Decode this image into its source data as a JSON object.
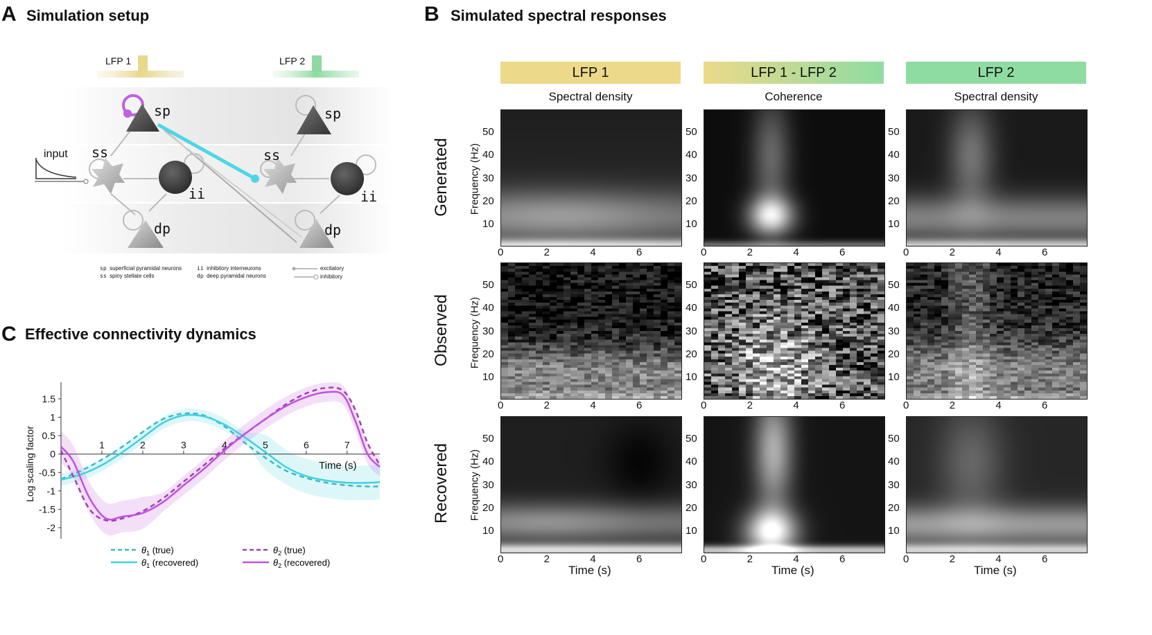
{
  "panels": {
    "a": {
      "letter": "A",
      "title": "Simulation setup"
    },
    "b": {
      "letter": "B",
      "title": "Simulated spectral responses"
    },
    "c": {
      "letter": "C",
      "title": "Effective connectivity dynamics"
    }
  },
  "setup": {
    "lfp1": "LFP 1",
    "lfp2": "LFP 2",
    "input_label": "input",
    "node_labels": {
      "sp": "sp",
      "ss": "ss",
      "ii": "ii",
      "dp": "dp"
    },
    "legend": [
      {
        "abbr": "sp",
        "text": "superficial pyramidal neurons"
      },
      {
        "abbr": "ss",
        "text": "spiny stellate cells"
      },
      {
        "abbr": "ii",
        "text": "inhibitory interneurons"
      },
      {
        "abbr": "dp",
        "text": "deep pyramidal neurons"
      }
    ],
    "connection_legend": {
      "excitatory": "excitatory",
      "inhibitory": "inhibitory"
    },
    "colors": {
      "lfp1": "#e8d88a",
      "lfp2": "#8ed9a0",
      "forward": "#4dd6e6",
      "self": "#c060e0"
    }
  },
  "spectral": {
    "columns": [
      {
        "header": "LFP 1",
        "sub": "Spectral density",
        "color": "#ecd98a"
      },
      {
        "header": "LFP 1 - LFP 2",
        "sub": "Coherence",
        "color": "gradient"
      },
      {
        "header": "LFP 2",
        "sub": "Spectral density",
        "color": "#8fdca2"
      }
    ],
    "rows": [
      "Generated",
      "Observed",
      "Recovered"
    ],
    "ylabel": "Frequency (Hz)",
    "xlabel": "Time (s)",
    "xticks": [
      "0",
      "2",
      "4",
      "6"
    ],
    "yticks": [
      "50",
      "40",
      "30",
      "20",
      "10"
    ],
    "colors": {
      "lfp1": "#ecd98a",
      "lfp2": "#8fdca2"
    }
  },
  "chart_data": {
    "type": "line",
    "xlabel": "Time (s)",
    "ylabel": "Log scaling factor",
    "xlim": [
      0,
      7.8
    ],
    "ylim": [
      -2.3,
      1.95
    ],
    "xticks": [
      1,
      2,
      3,
      4,
      5,
      6,
      7
    ],
    "yticks": [
      1.5,
      1,
      0.5,
      0,
      -0.5,
      -1,
      -1.5,
      -2
    ],
    "ytick_labels": [
      "1.5",
      "1",
      "0.5",
      "0",
      "-0.5",
      "-1",
      "-1.5",
      "-2"
    ],
    "series": [
      {
        "name": "θ1 (true)",
        "color": "#3bb8c4",
        "style": "dashed",
        "x": [
          0,
          0.5,
          1,
          1.5,
          2,
          2.5,
          3,
          3.5,
          4,
          4.5,
          5,
          5.5,
          6,
          6.5,
          7,
          7.5,
          7.8
        ],
        "y": [
          -0.68,
          -0.45,
          -0.15,
          0.2,
          0.6,
          0.95,
          1.1,
          1.05,
          0.75,
          0.3,
          -0.1,
          -0.45,
          -0.65,
          -0.78,
          -0.85,
          -0.88,
          -0.88
        ]
      },
      {
        "name": "θ1 (recovered)",
        "color": "#40d0e0",
        "style": "solid",
        "x": [
          0,
          0.5,
          1,
          1.5,
          2,
          2.5,
          3,
          3.5,
          4,
          4.5,
          5,
          5.5,
          6,
          6.5,
          7,
          7.5,
          7.8
        ],
        "y": [
          -0.7,
          -0.55,
          -0.3,
          0.05,
          0.45,
          0.85,
          1.05,
          1.02,
          0.8,
          0.45,
          0.05,
          -0.35,
          -0.6,
          -0.72,
          -0.78,
          -0.78,
          -0.76
        ]
      },
      {
        "name": "θ2 (true)",
        "color": "#a040b0",
        "style": "dashed",
        "x": [
          0,
          0.3,
          0.7,
          1.1,
          1.5,
          2,
          2.5,
          3,
          3.5,
          4,
          4.5,
          5,
          5.5,
          6,
          6.5,
          6.9,
          7.2,
          7.5,
          7.8
        ],
        "y": [
          0.1,
          -0.6,
          -1.5,
          -1.8,
          -1.75,
          -1.55,
          -1.2,
          -0.75,
          -0.3,
          0.15,
          0.55,
          0.95,
          1.35,
          1.65,
          1.8,
          1.72,
          1.2,
          0.3,
          -0.3
        ]
      },
      {
        "name": "θ2 (recovered)",
        "color": "#c050e0",
        "style": "solid",
        "x": [
          0,
          0.3,
          0.7,
          1.1,
          1.5,
          2,
          2.5,
          3,
          3.5,
          4,
          4.5,
          5,
          5.5,
          6,
          6.5,
          6.9,
          7.2,
          7.5,
          7.8
        ],
        "y": [
          0.2,
          -0.2,
          -1.2,
          -1.75,
          -1.7,
          -1.6,
          -1.3,
          -0.85,
          -0.4,
          0.1,
          0.55,
          0.95,
          1.3,
          1.55,
          1.68,
          1.6,
          0.9,
          0.0,
          -0.35
        ]
      }
    ],
    "legend": [
      {
        "label_var": "θ",
        "sub": "1",
        "suffix": " (true)",
        "color": "#3bb8c4",
        "dashed": true
      },
      {
        "label_var": "θ",
        "sub": "1",
        "suffix": " (recovered)",
        "color": "#40d0e0",
        "dashed": false
      },
      {
        "label_var": "θ",
        "sub": "2",
        "suffix": " (true)",
        "color": "#a040b0",
        "dashed": true
      },
      {
        "label_var": "θ",
        "sub": "2",
        "suffix": " (recovered)",
        "color": "#c050e0",
        "dashed": false
      }
    ]
  }
}
